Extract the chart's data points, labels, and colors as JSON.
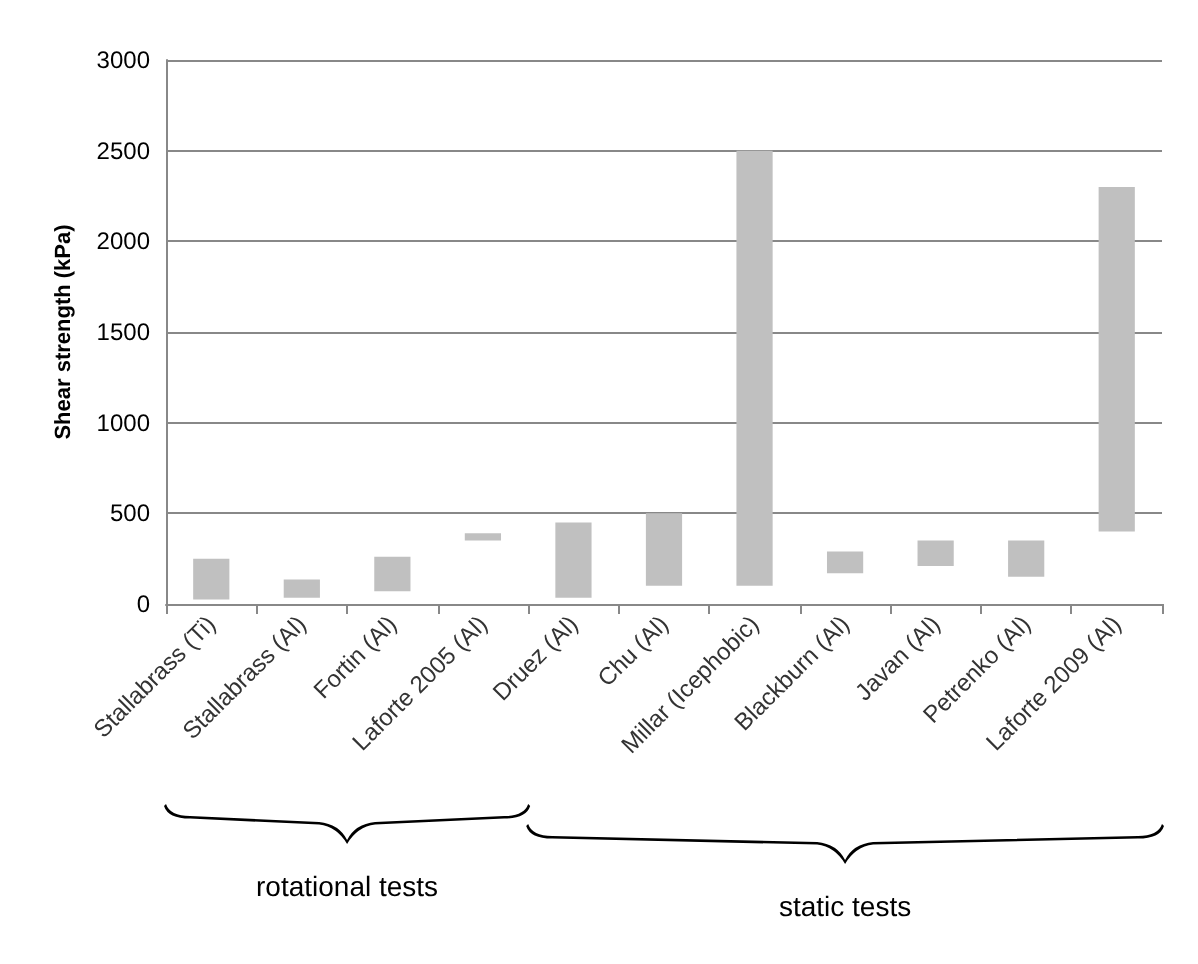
{
  "chart_data": {
    "type": "bar",
    "ylabel": "Shear strength (kPa)",
    "categories": [
      "Stallabrass (Ti)",
      "Stallabrass (Al)",
      "Fortin (Al)",
      "Laforte 2005 (Al)",
      "Druez (Al)",
      "Chu (Al)",
      "Millar (Icephobic)",
      "Blackburn (Al)",
      "Javan (Al)",
      "Petrenko (Al)",
      "Laforte 2009 (Al)"
    ],
    "base": [
      25,
      35,
      70,
      350,
      35,
      100,
      100,
      170,
      210,
      150,
      400
    ],
    "values": [
      225,
      100,
      190,
      40,
      415,
      400,
      2400,
      120,
      140,
      200,
      1900
    ],
    "color": "#c0c0c0",
    "ylim": [
      0,
      3000
    ],
    "yticks": [
      0,
      500,
      1000,
      1500,
      2000,
      2500,
      3000
    ],
    "grid": "y",
    "legend": false,
    "annotations": [
      "rotational tests",
      "static tests"
    ]
  }
}
